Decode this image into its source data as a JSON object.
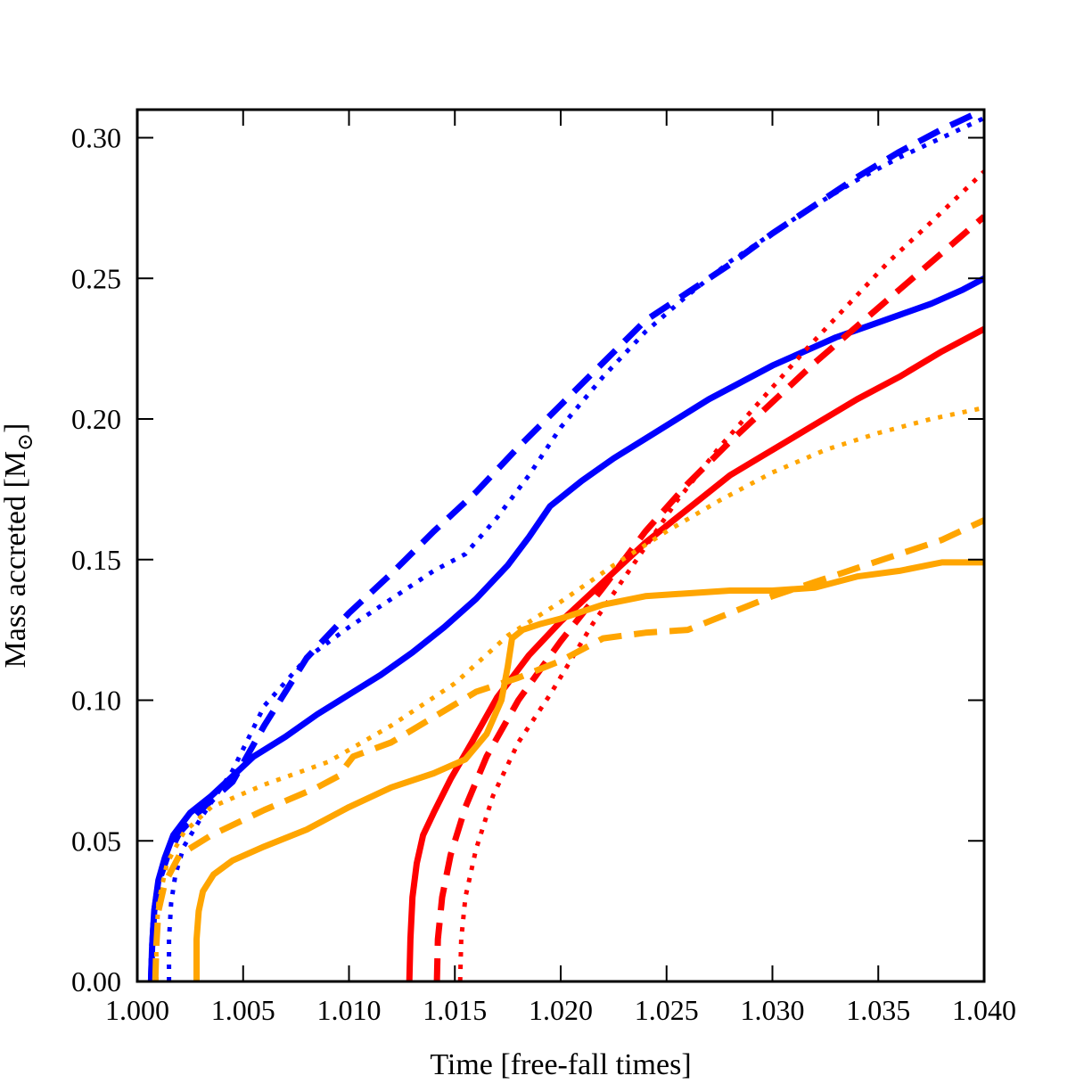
{
  "chart_data": {
    "type": "line",
    "xlabel": "Time [free-fall times]",
    "ylabel": "Mass accreted [M",
    "ylabel_subscript": "⊙",
    "ylabel_close": "]",
    "xlim": [
      1.0,
      1.04
    ],
    "ylim": [
      0.0,
      0.31
    ],
    "x_ticks": [
      1.0,
      1.005,
      1.01,
      1.015,
      1.02,
      1.025,
      1.03,
      1.035,
      1.04
    ],
    "x_tick_labels": [
      "1.000",
      "1.005",
      "1.010",
      "1.015",
      "1.020",
      "1.025",
      "1.030",
      "1.035",
      "1.040"
    ],
    "y_ticks": [
      0.0,
      0.05,
      0.1,
      0.15,
      0.2,
      0.25,
      0.3
    ],
    "y_tick_labels": [
      "0.00",
      "0.05",
      "0.10",
      "0.15",
      "0.20",
      "0.25",
      "0.30"
    ],
    "grid": false,
    "series": [
      {
        "color": "#0000ff",
        "style": "solid",
        "x": [
          1.00065,
          1.0007,
          1.0008,
          1.001,
          1.0013,
          1.0017,
          1.0025,
          1.0035,
          1.0045,
          1.0055,
          1.007,
          1.0085,
          1.01,
          1.0115,
          1.013,
          1.0145,
          1.016,
          1.0175,
          1.0185,
          1.0195,
          1.021,
          1.0225,
          1.024,
          1.0255,
          1.027,
          1.0285,
          1.03,
          1.0315,
          1.033,
          1.0345,
          1.036,
          1.0375,
          1.039,
          1.04
        ],
        "y": [
          0.0,
          0.012,
          0.025,
          0.036,
          0.044,
          0.052,
          0.06,
          0.066,
          0.073,
          0.08,
          0.087,
          0.095,
          0.102,
          0.109,
          0.117,
          0.126,
          0.136,
          0.148,
          0.158,
          0.169,
          0.178,
          0.186,
          0.193,
          0.2,
          0.207,
          0.213,
          0.219,
          0.224,
          0.229,
          0.233,
          0.237,
          0.241,
          0.246,
          0.25
        ]
      },
      {
        "color": "#0000ff",
        "style": "dashed",
        "x": [
          1.00065,
          1.0007,
          1.0008,
          1.001,
          1.0014,
          1.002,
          1.003,
          1.0045,
          1.006,
          1.008,
          1.01,
          1.012,
          1.014,
          1.016,
          1.018,
          1.02,
          1.022,
          1.024,
          1.026,
          1.028,
          1.03,
          1.032,
          1.034,
          1.036,
          1.038,
          1.04
        ],
        "y": [
          0.0,
          0.012,
          0.025,
          0.035,
          0.044,
          0.053,
          0.061,
          0.071,
          0.091,
          0.115,
          0.131,
          0.145,
          0.16,
          0.174,
          0.19,
          0.205,
          0.22,
          0.235,
          0.245,
          0.255,
          0.266,
          0.276,
          0.286,
          0.295,
          0.303,
          0.31
        ]
      },
      {
        "color": "#0000ff",
        "style": "dotted",
        "x": [
          1.0015,
          1.0015,
          1.0016,
          1.0018,
          1.0022,
          1.003,
          1.0045,
          1.006,
          1.008,
          1.01,
          1.012,
          1.014,
          1.0155,
          1.017,
          1.0185,
          1.02,
          1.022,
          1.024,
          1.026,
          1.028,
          1.03,
          1.032,
          1.034,
          1.036,
          1.038,
          1.04
        ],
        "y": [
          0.0,
          0.015,
          0.028,
          0.038,
          0.048,
          0.058,
          0.075,
          0.098,
          0.115,
          0.126,
          0.136,
          0.146,
          0.152,
          0.165,
          0.18,
          0.197,
          0.215,
          0.231,
          0.244,
          0.256,
          0.266,
          0.276,
          0.285,
          0.293,
          0.3,
          0.307
        ]
      },
      {
        "color": "#ff0000",
        "style": "solid",
        "x": [
          1.01285,
          1.0129,
          1.013,
          1.0132,
          1.0135,
          1.014,
          1.0148,
          1.0158,
          1.017,
          1.0185,
          1.02,
          1.022,
          1.024,
          1.026,
          1.028,
          1.03,
          1.032,
          1.034,
          1.036,
          1.038,
          1.04
        ],
        "y": [
          0.0,
          0.015,
          0.03,
          0.042,
          0.052,
          0.06,
          0.072,
          0.085,
          0.101,
          0.116,
          0.128,
          0.142,
          0.156,
          0.168,
          0.18,
          0.189,
          0.198,
          0.207,
          0.215,
          0.224,
          0.232
        ]
      },
      {
        "color": "#ff0000",
        "style": "dashed",
        "x": [
          1.01415,
          1.0142,
          1.0144,
          1.0148,
          1.0155,
          1.0165,
          1.018,
          1.02,
          1.022,
          1.024,
          1.026,
          1.028,
          1.03,
          1.032,
          1.034,
          1.036,
          1.038,
          1.04
        ],
        "y": [
          0.0,
          0.015,
          0.03,
          0.045,
          0.062,
          0.08,
          0.1,
          0.121,
          0.14,
          0.16,
          0.177,
          0.192,
          0.206,
          0.22,
          0.233,
          0.246,
          0.259,
          0.272
        ]
      },
      {
        "color": "#ff0000",
        "style": "dotted",
        "x": [
          1.01525,
          1.0153,
          1.0155,
          1.016,
          1.0168,
          1.018,
          1.0195,
          1.0215,
          1.0235,
          1.0255,
          1.0275,
          1.0295,
          1.0315,
          1.0335,
          1.0355,
          1.0375,
          1.04
        ],
        "y": [
          0.0,
          0.015,
          0.03,
          0.047,
          0.066,
          0.085,
          0.102,
          0.127,
          0.149,
          0.171,
          0.19,
          0.207,
          0.224,
          0.24,
          0.256,
          0.27,
          0.288
        ]
      },
      {
        "color": "#ffa500",
        "style": "solid",
        "x": [
          1.0028,
          1.0028,
          1.0029,
          1.0031,
          1.0036,
          1.0045,
          1.006,
          1.008,
          1.01,
          1.012,
          1.014,
          1.0155,
          1.0165,
          1.0172,
          1.0175,
          1.0177,
          1.0182,
          1.019,
          1.02,
          1.022,
          1.024,
          1.026,
          1.028,
          1.03,
          1.032,
          1.034,
          1.036,
          1.038,
          1.04
        ],
        "y": [
          0.0,
          0.015,
          0.025,
          0.032,
          0.038,
          0.043,
          0.048,
          0.054,
          0.062,
          0.069,
          0.074,
          0.079,
          0.088,
          0.1,
          0.112,
          0.122,
          0.125,
          0.127,
          0.129,
          0.134,
          0.137,
          0.138,
          0.139,
          0.139,
          0.14,
          0.144,
          0.146,
          0.149,
          0.149
        ]
      },
      {
        "color": "#ffa500",
        "style": "dashed",
        "x": [
          1.00085,
          1.0009,
          1.001,
          1.0013,
          1.002,
          1.0035,
          1.006,
          1.0085,
          1.0095,
          1.0102,
          1.012,
          1.014,
          1.016,
          1.018,
          1.02,
          1.022,
          1.024,
          1.026,
          1.028,
          1.03,
          1.032,
          1.034,
          1.036,
          1.038,
          1.04
        ],
        "y": [
          0.0,
          0.013,
          0.025,
          0.035,
          0.045,
          0.052,
          0.061,
          0.069,
          0.073,
          0.08,
          0.085,
          0.094,
          0.103,
          0.108,
          0.114,
          0.122,
          0.124,
          0.125,
          0.131,
          0.137,
          0.142,
          0.147,
          0.152,
          0.157,
          0.164
        ]
      },
      {
        "color": "#ffa500",
        "style": "dotted",
        "x": [
          1.0009,
          1.0009,
          1.001,
          1.0014,
          1.0022,
          1.0035,
          1.006,
          1.009,
          1.012,
          1.015,
          1.0175,
          1.02,
          1.0225,
          1.025,
          1.0275,
          1.03,
          1.0325,
          1.035,
          1.0375,
          1.04
        ],
        "y": [
          0.0,
          0.015,
          0.028,
          0.042,
          0.053,
          0.062,
          0.07,
          0.078,
          0.091,
          0.106,
          0.123,
          0.135,
          0.148,
          0.16,
          0.171,
          0.181,
          0.189,
          0.195,
          0.2,
          0.204
        ]
      }
    ]
  }
}
